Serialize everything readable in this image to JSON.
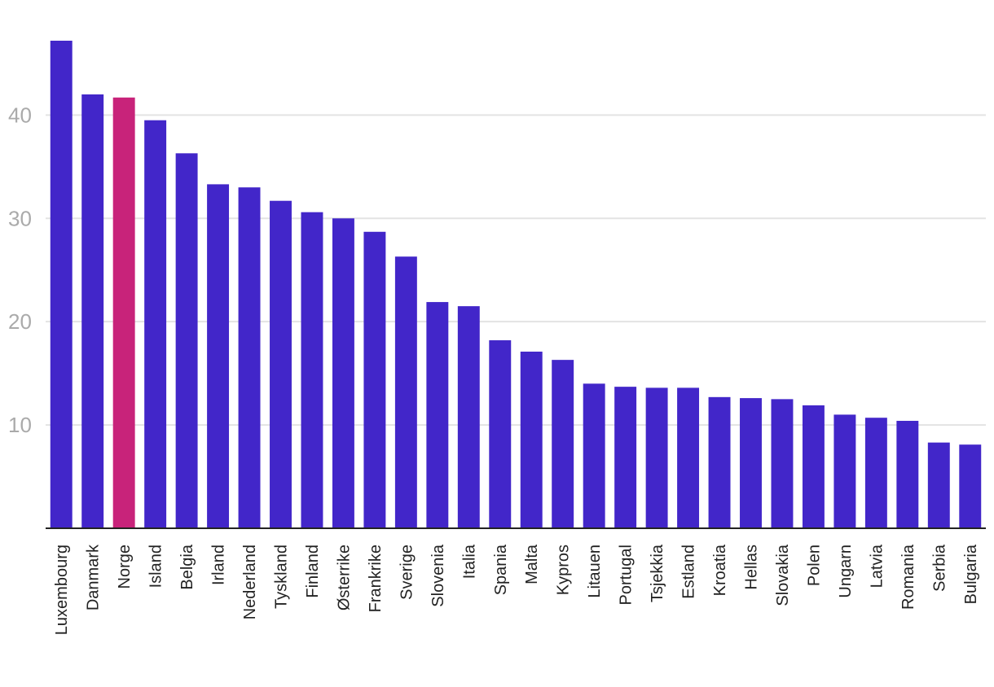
{
  "chart_data": {
    "type": "bar",
    "title": "",
    "xlabel": "",
    "ylabel": "",
    "ylim": [
      0,
      47.2
    ],
    "yticks": [
      10,
      20,
      30,
      40
    ],
    "grid": true,
    "legend": "none",
    "colors": {
      "default": "#4226c9",
      "highlight": "#c8237a",
      "gridline": "#e3e3e3",
      "baseline": "#222222",
      "ytick_label": "#aaaaaa",
      "xtick_label": "#222222"
    },
    "highlight": "Norge",
    "categories": [
      "Luxembourg",
      "Danmark",
      "Norge",
      "Island",
      "Belgia",
      "Irland",
      "Nederland",
      "Tyskland",
      "Finland",
      "Østerrike",
      "Frankrike",
      "Sverige",
      "Slovenia",
      "Italia",
      "Spania",
      "Malta",
      "Kypros",
      "Litauen",
      "Portugal",
      "Tsjekkia",
      "Estland",
      "Kroatia",
      "Hellas",
      "Slovakia",
      "Polen",
      "Ungarn",
      "Latvia",
      "Romania",
      "Serbia",
      "Bulgaria"
    ],
    "values": [
      47.2,
      42.0,
      41.7,
      39.5,
      36.3,
      33.3,
      33.0,
      31.7,
      30.6,
      30.0,
      28.7,
      26.3,
      21.9,
      21.5,
      18.2,
      17.1,
      16.3,
      14.0,
      13.7,
      13.6,
      13.6,
      12.7,
      12.6,
      12.5,
      11.9,
      11.0,
      10.7,
      10.4,
      8.3,
      8.1
    ]
  }
}
